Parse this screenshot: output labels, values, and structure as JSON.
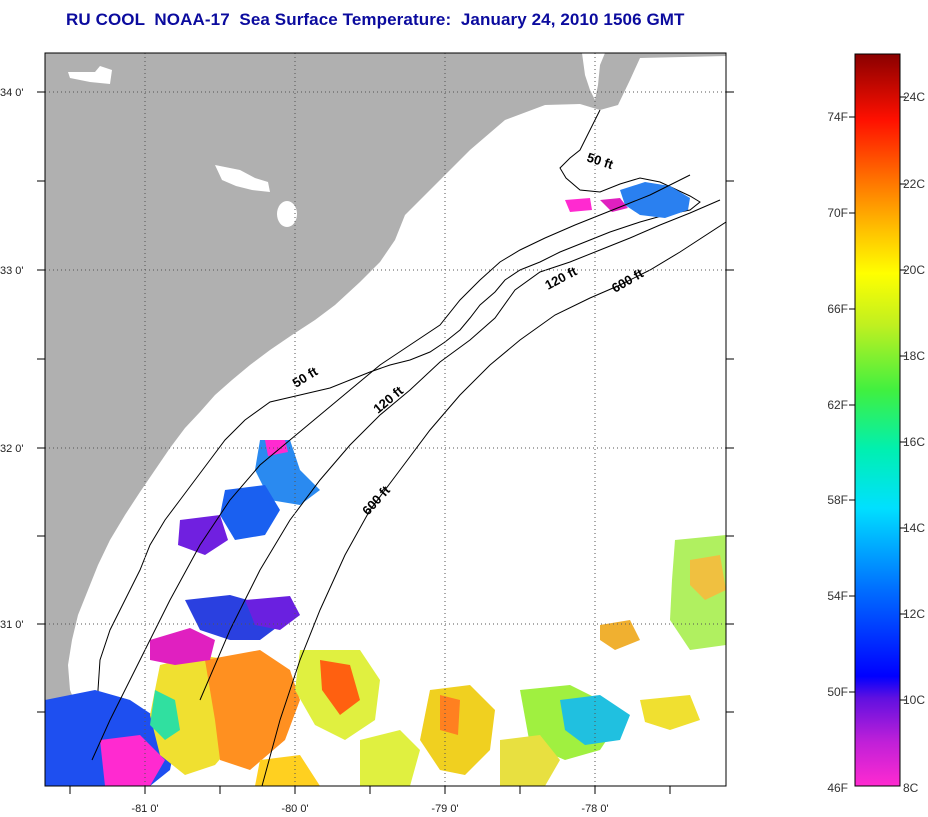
{
  "title": "RU COOL  NOAA-17  Sea Surface Temperature:  January 24, 2010 1506 GMT",
  "colors": {
    "land": "#b0b0b0",
    "ocean": "#ffffff",
    "title": "#0b0b9e",
    "grid": "#555555"
  },
  "axes": {
    "lat_ticks": [
      "34 0'",
      "33 0'",
      "32 0'",
      "31 0'"
    ],
    "lon_ticks": [
      "-81 0'",
      "-80 0'",
      "-79 0'",
      "-78 0'"
    ]
  },
  "contours": [
    {
      "label": "50 ft"
    },
    {
      "label": "120 ft"
    },
    {
      "label": "600 ft"
    },
    {
      "label": "50 ft"
    },
    {
      "label": "120 ft"
    },
    {
      "label": "600 ft"
    }
  ],
  "colorbar": {
    "fahrenheit": [
      "74F",
      "70F",
      "66F",
      "62F",
      "58F",
      "54F",
      "50F",
      "46F"
    ],
    "celsius": [
      "24C",
      "22C",
      "20C",
      "18C",
      "16C",
      "14C",
      "12C",
      "10C",
      "8C"
    ]
  }
}
